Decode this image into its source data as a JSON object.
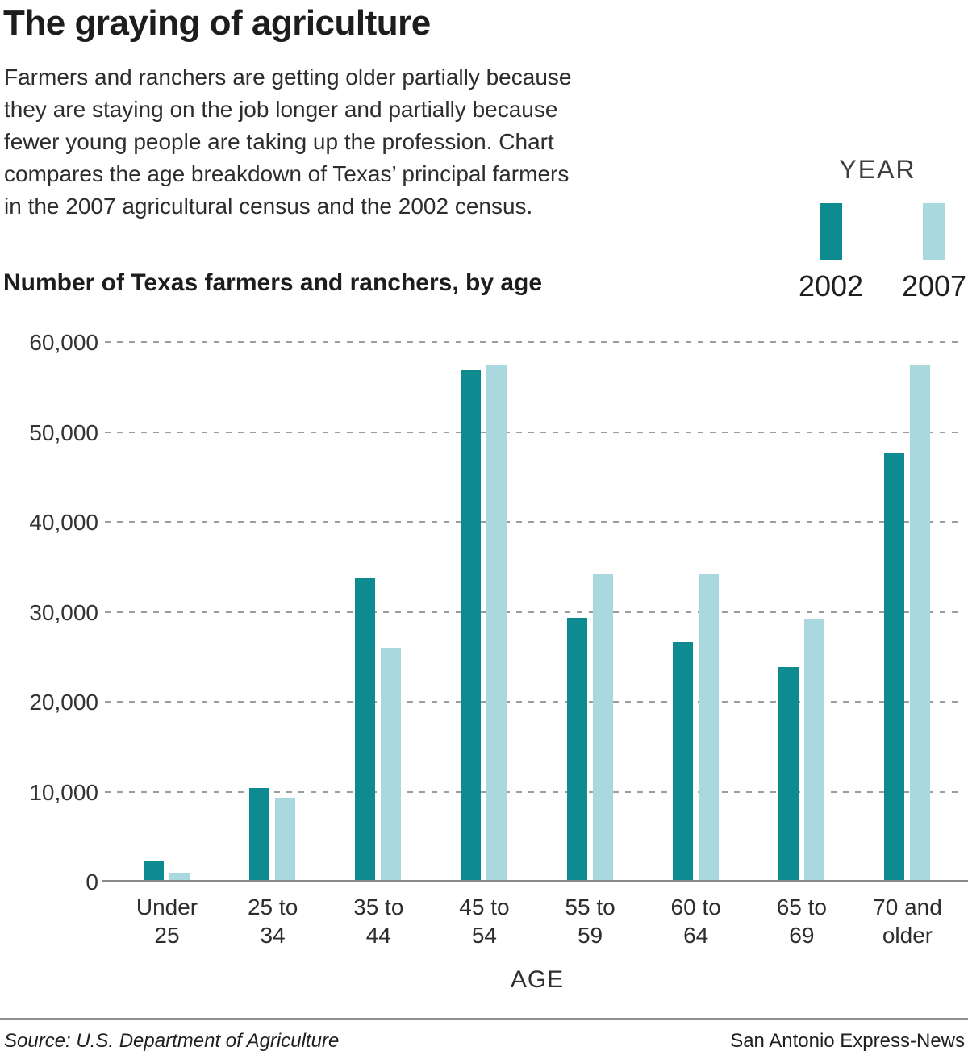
{
  "title": "The graying of agriculture",
  "subtitle_lines": [
    "Farmers and ranchers are getting older partially because",
    "they are staying on the job longer and partially because",
    "fewer young people are taking up the profession. Chart",
    "compares the age breakdown of Texas’ principal farmers",
    "in the 2007 agricultural census and the 2002 census."
  ],
  "section_heading": "Number of Texas farmers and ranchers, by age",
  "legend": {
    "title": "YEAR",
    "entries": [
      {
        "label": "2002",
        "color": "#0e8a91"
      },
      {
        "label": "2007",
        "color": "#a9d8de"
      }
    ]
  },
  "chart_data": {
    "type": "bar",
    "title": "Number of Texas farmers and ranchers, by age",
    "xlabel": "AGE",
    "ylabel": "",
    "ylim": [
      0,
      60000
    ],
    "grid": "dashed-horizontal",
    "legend_position": "top-right",
    "y_ticks": [
      {
        "value": 60000,
        "label": "60,000"
      },
      {
        "value": 50000,
        "label": "50,000"
      },
      {
        "value": 40000,
        "label": "40,000"
      },
      {
        "value": 30000,
        "label": "30,000"
      },
      {
        "value": 20000,
        "label": "20,000"
      },
      {
        "value": 10000,
        "label": "10,000"
      },
      {
        "value": 0,
        "label": "0"
      }
    ],
    "categories": [
      [
        "Under",
        "25"
      ],
      [
        "25 to",
        "34"
      ],
      [
        "35 to",
        "44"
      ],
      [
        "45 to",
        "54"
      ],
      [
        "55 to",
        "59"
      ],
      [
        "60 to",
        "64"
      ],
      [
        "65 to",
        "69"
      ],
      [
        "70 and",
        "older"
      ]
    ],
    "series": [
      {
        "name": "2002",
        "color": "#0e8a91",
        "values": [
          2200,
          10400,
          33800,
          56900,
          29300,
          26600,
          23900,
          47600
        ]
      },
      {
        "name": "2007",
        "color": "#a9d8de",
        "values": [
          1000,
          9300,
          25900,
          57400,
          34200,
          34200,
          29200,
          57400
        ]
      }
    ]
  },
  "footer": {
    "source": "Source: U.S. Department of Agriculture",
    "credit": "San Antonio Express-News"
  }
}
